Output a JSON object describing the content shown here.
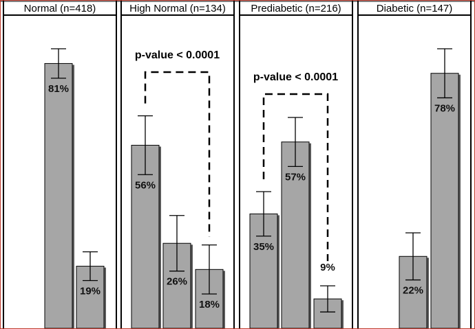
{
  "chart_data": {
    "type": "bar",
    "title": "",
    "xlabel": "",
    "ylabel": "",
    "ylim": [
      0,
      100
    ],
    "colors": {
      "bar_fill": "#a6a6a6",
      "bar_shadow": "#5a5a5a",
      "stroke": "#000000",
      "background": "#ffffff",
      "outer_border": "#c0392b"
    },
    "panels": [
      {
        "title": "Normal (n=418)",
        "values": [
          81,
          19
        ],
        "labels": [
          "81%",
          "19%"
        ],
        "errors": [
          4.5,
          4.4
        ],
        "annotation": null
      },
      {
        "title": "High Normal (n=134)",
        "values": [
          56,
          26,
          18
        ],
        "labels": [
          "56%",
          "26%",
          "18%"
        ],
        "errors": [
          9,
          8.5,
          7.5
        ],
        "annotation": {
          "text": "p-value < 0.0001",
          "from": 0,
          "to": 2
        }
      },
      {
        "title": "Prediabetic (n=216)",
        "values": [
          35,
          57,
          9
        ],
        "labels": [
          "35%",
          "57%",
          "9%"
        ],
        "errors": [
          6.8,
          7.5,
          4
        ],
        "annotation": {
          "text": "p-value < 0.0001",
          "from": 0,
          "to": 2
        }
      },
      {
        "title": "Diabetic (n=147)",
        "values": [
          22,
          78
        ],
        "labels": [
          "22%",
          "78%"
        ],
        "errors": [
          7.2,
          7.5
        ],
        "annotation": null
      }
    ]
  }
}
